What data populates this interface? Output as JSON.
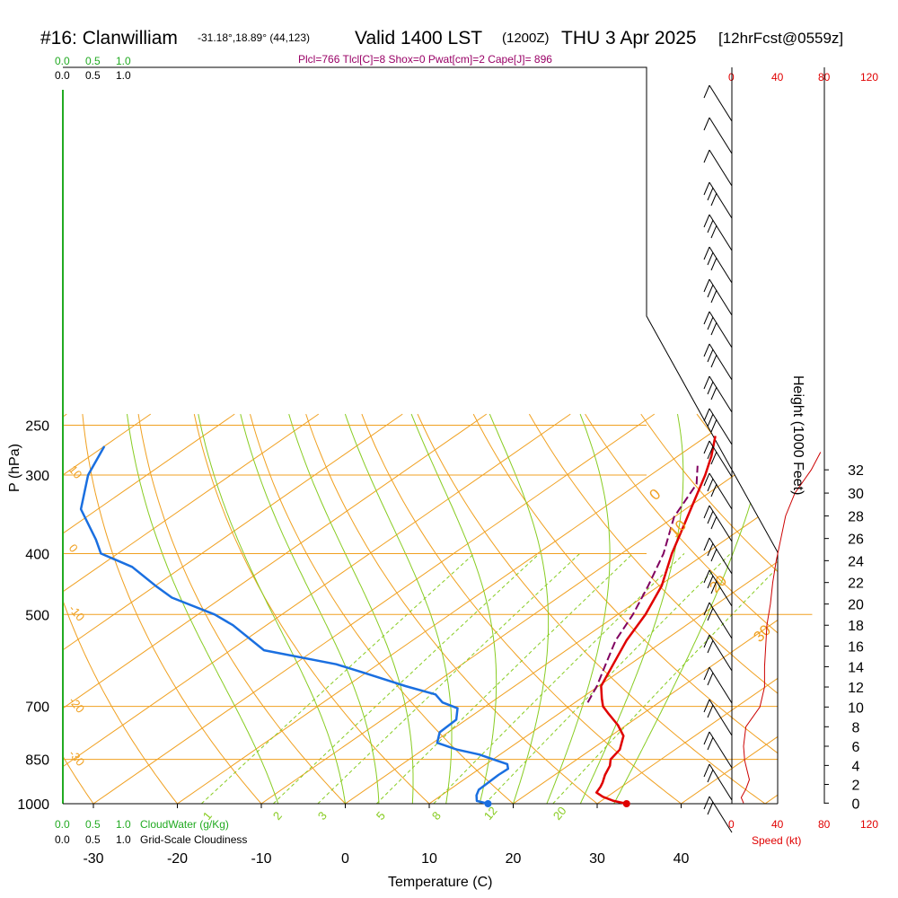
{
  "title": {
    "main": "#16: Clanwilliam",
    "location": "-31.18°,18.89° (44,123)",
    "valid": "Valid 1400 LST",
    "utc": "(1200Z)",
    "date": "THU 3 Apr 2025",
    "forecast": "[12hrFcst@0559z]"
  },
  "indices_text": "Plcl=766 Tlcl[C]=8 Shox=0 Pwat[cm]=2 Cape[J]= 896",
  "cloud_water": {
    "label": "CloudWater (g/Kg)",
    "ticks": [
      "0.0",
      "0.5",
      "1.0"
    ]
  },
  "cloudiness": {
    "label": "Grid-Scale Cloudiness",
    "ticks": [
      "0.0",
      "0.5",
      "1.0"
    ]
  },
  "speed_axis": {
    "label": "Speed (kt)",
    "ticks": [
      "0",
      "40",
      "80",
      "120"
    ]
  },
  "colors": {
    "temperature": "#e00000",
    "dewpoint": "#1a6fe0",
    "parcel": "#800060",
    "isotherm": "#f0a020",
    "mixing_ratio": "#88cc22",
    "cloud": "#22aa22",
    "speed": "#cc0000"
  },
  "chart_data": {
    "type": "line",
    "xlabel": "Temperature (C)",
    "ylabel": "P (hPa)",
    "y2label": "Height (1000 Feet)",
    "x_ticks": [
      -30,
      -20,
      -10,
      0,
      10,
      20,
      30,
      40
    ],
    "pressure_ticks": [
      250,
      300,
      400,
      500,
      700,
      850,
      1000
    ],
    "height_ticks": [
      0,
      2,
      4,
      6,
      8,
      10,
      12,
      14,
      16,
      18,
      20,
      22,
      24,
      26,
      28,
      30,
      32
    ],
    "surface_temperature": 33.5,
    "surface_dewpoint": 17,
    "isotherm_labels": [
      "10",
      "0",
      "-10",
      "-20",
      "-30"
    ],
    "theta_labels": [
      "0",
      "10",
      "20",
      "30"
    ],
    "mixing_ratio_labels": [
      "1",
      "2",
      "3",
      "5",
      "8",
      "12",
      "20"
    ],
    "series": [
      {
        "id": "temperature",
        "points": [
          [
            1000,
            33.5
          ],
          [
            990,
            31.5
          ],
          [
            975,
            29.5
          ],
          [
            960,
            28
          ],
          [
            940,
            27.5
          ],
          [
            925,
            27
          ],
          [
            900,
            26
          ],
          [
            870,
            25
          ],
          [
            850,
            24
          ],
          [
            820,
            23.4
          ],
          [
            780,
            21.5
          ],
          [
            750,
            19
          ],
          [
            720,
            16
          ],
          [
            700,
            14
          ],
          [
            680,
            12.5
          ],
          [
            650,
            10.3
          ],
          [
            600,
            8
          ],
          [
            550,
            5.5
          ],
          [
            500,
            3.3
          ],
          [
            450,
            0.3
          ],
          [
            400,
            -4
          ],
          [
            350,
            -8.4
          ],
          [
            300,
            -13.5
          ],
          [
            280,
            -16
          ],
          [
            260,
            -19
          ]
        ]
      },
      {
        "id": "dewpoint",
        "points": [
          [
            1000,
            17
          ],
          [
            990,
            15.2
          ],
          [
            970,
            14.2
          ],
          [
            950,
            13.5
          ],
          [
            900,
            13.3
          ],
          [
            880,
            13.4
          ],
          [
            865,
            12.5
          ],
          [
            850,
            10
          ],
          [
            835,
            7.5
          ],
          [
            820,
            4
          ],
          [
            800,
            0.5
          ],
          [
            770,
            -1
          ],
          [
            735,
            -1.2
          ],
          [
            705,
            -3
          ],
          [
            690,
            -5.8
          ],
          [
            670,
            -8
          ],
          [
            650,
            -13
          ],
          [
            620,
            -20
          ],
          [
            600,
            -25
          ],
          [
            570,
            -36
          ],
          [
            520,
            -44
          ],
          [
            500,
            -48
          ],
          [
            470,
            -56
          ],
          [
            450,
            -60
          ],
          [
            420,
            -66
          ],
          [
            400,
            -72
          ],
          [
            380,
            -75
          ],
          [
            340,
            -82
          ],
          [
            300,
            -87
          ],
          [
            270,
            -90
          ]
        ]
      },
      {
        "id": "parcel",
        "points": [
          [
            690,
            11.5
          ],
          [
            650,
            9.8
          ],
          [
            600,
            7.1
          ],
          [
            550,
            4.2
          ],
          [
            500,
            1.8
          ],
          [
            450,
            -1.3
          ],
          [
            400,
            -5
          ],
          [
            350,
            -10
          ],
          [
            310,
            -13
          ],
          [
            290,
            -16
          ]
        ]
      }
    ],
    "wind_speed_profile": [
      [
        0,
        10
      ],
      [
        0.6,
        8
      ],
      [
        1.5,
        12
      ],
      [
        2.5,
        15
      ],
      [
        3.5,
        13
      ],
      [
        4.5,
        11
      ],
      [
        6,
        10
      ],
      [
        8,
        12
      ],
      [
        10,
        24
      ],
      [
        12,
        28
      ],
      [
        14,
        28
      ],
      [
        16,
        29
      ],
      [
        18,
        30
      ],
      [
        20,
        33
      ],
      [
        22,
        35
      ],
      [
        24,
        38
      ],
      [
        26,
        42
      ],
      [
        28,
        46
      ],
      [
        30,
        54
      ],
      [
        32,
        68
      ],
      [
        33.5,
        76
      ]
    ]
  }
}
